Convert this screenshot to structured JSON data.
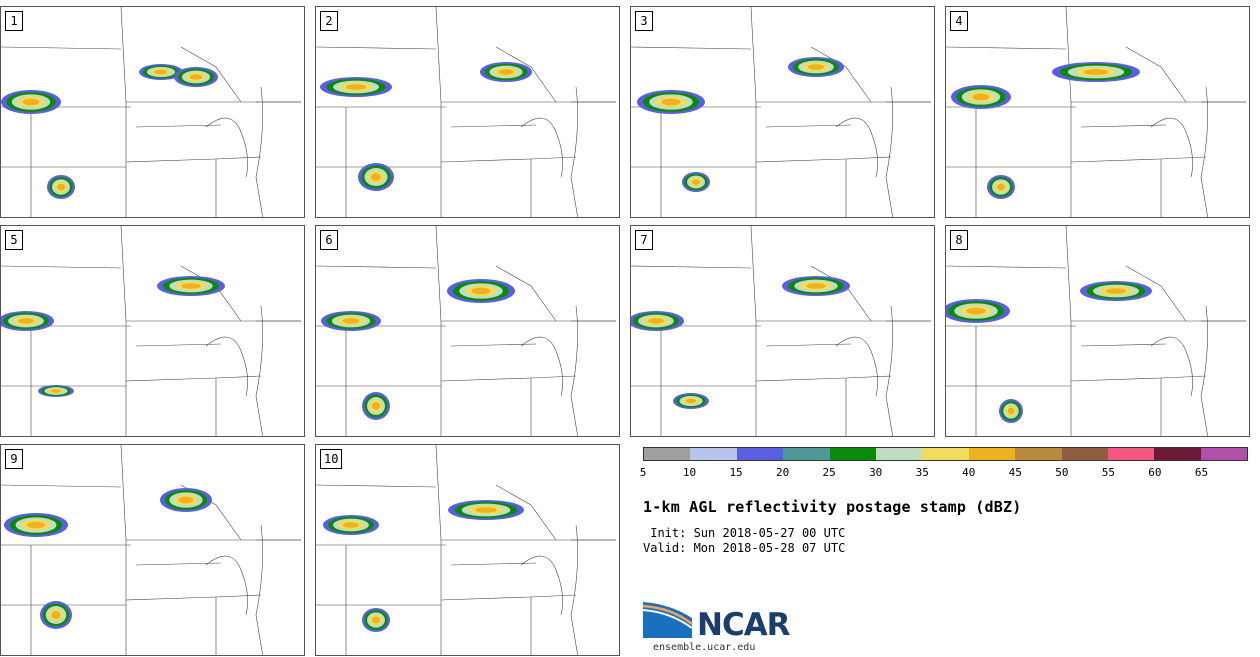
{
  "panels": [
    "1",
    "2",
    "3",
    "4",
    "5",
    "6",
    "7",
    "8",
    "9",
    "10"
  ],
  "colorbar": {
    "colors": [
      "#a0a0a0",
      "#b8c4ec",
      "#5a5ee0",
      "#4f9898",
      "#0a8a0a",
      "#c2dcc2",
      "#f0dc5e",
      "#eeb21e",
      "#b98a3c",
      "#8f5d3f",
      "#f45780",
      "#6e1838",
      "#b050a8"
    ],
    "ticks": [
      "5",
      "10",
      "15",
      "20",
      "25",
      "30",
      "35",
      "40",
      "45",
      "50",
      "55",
      "60",
      "65"
    ]
  },
  "title": "1-km AGL reflectivity postage stamp (dBZ)",
  "init": " Init: Sun 2018-05-27 00 UTC",
  "valid": "Valid: Mon 2018-05-28 07 UTC",
  "logo": "NCAR",
  "site": "ensemble.ucar.edu"
}
